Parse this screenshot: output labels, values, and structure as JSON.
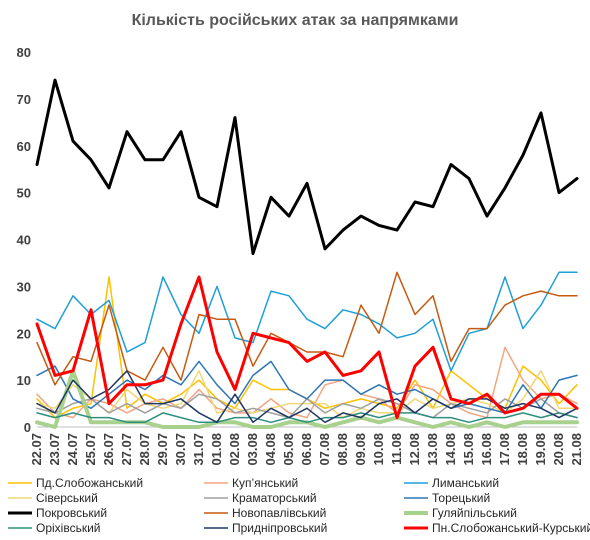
{
  "chart_data": {
    "type": "line",
    "title": "Кількість російських атак за напрямками",
    "xlabel": "",
    "ylabel": "",
    "ylim": [
      0,
      80
    ],
    "yticks": [
      0,
      10,
      20,
      30,
      40,
      50,
      60,
      70,
      80
    ],
    "grid": false,
    "legend_position": "bottom",
    "categories": [
      "22.07",
      "23.07",
      "24.07",
      "25.07",
      "26.07",
      "27.07",
      "28.07",
      "29.07",
      "30.07",
      "31.07",
      "01.08",
      "02.08",
      "03.08",
      "04.08",
      "05.08",
      "06.08",
      "07.08",
      "08.08",
      "09.08",
      "10.08",
      "11.08",
      "12.08",
      "13.08",
      "14.08",
      "15.08",
      "16.08",
      "17.08",
      "18.08",
      "19.08",
      "20.08",
      "21.08"
    ],
    "x": [
      "22.07",
      "23.07",
      "24.07",
      "25.07",
      "26.07",
      "27.07",
      "28.07",
      "29.07",
      "30.07",
      "31.07",
      "01.08",
      "02.08",
      "03.08",
      "04.08",
      "05.08",
      "06.08",
      "07.08",
      "08.08",
      "09.08",
      "10.08",
      "11.08",
      "12.08",
      "13.08",
      "14.08",
      "15.08",
      "16.08",
      "17.08",
      "18.08",
      "19.08",
      "20.08",
      "21.08"
    ],
    "series": [
      {
        "name": "Пд.Слобожанський",
        "color": "#ffc000",
        "width": 1.5,
        "values": [
          6,
          2,
          4,
          5,
          32,
          4,
          7,
          5,
          7,
          10,
          6,
          4,
          10,
          8,
          8,
          6,
          4,
          5,
          6,
          5,
          4,
          10,
          4,
          12,
          9,
          6,
          4,
          13,
          10,
          5,
          9
        ]
      },
      {
        "name": "Куп’янський",
        "color": "#f4a582",
        "width": 1.5,
        "values": [
          7,
          3,
          2,
          6,
          5,
          3,
          5,
          6,
          4,
          8,
          4,
          3,
          3,
          6,
          3,
          2,
          9,
          10,
          7,
          6,
          3,
          9,
          8,
          5,
          3,
          2,
          17,
          10,
          6,
          7,
          5
        ]
      },
      {
        "name": "Лиманський",
        "color": "#1f9fd8",
        "width": 1.5,
        "values": [
          23,
          21,
          28,
          24,
          27,
          16,
          18,
          32,
          24,
          20,
          30,
          19,
          18,
          29,
          28,
          23,
          21,
          25,
          24,
          22,
          19,
          20,
          23,
          12,
          20,
          21,
          32,
          21,
          26,
          33,
          33
        ]
      },
      {
        "name": "Сіверський",
        "color": "#f0d878",
        "width": 1.5,
        "values": [
          5,
          4,
          9,
          6,
          3,
          8,
          5,
          4,
          5,
          12,
          3,
          4,
          3,
          4,
          5,
          5,
          5,
          2,
          4,
          3,
          3,
          6,
          4,
          5,
          6,
          5,
          3,
          6,
          12,
          4,
          4
        ]
      },
      {
        "name": "Краматорський",
        "color": "#a0a0a0",
        "width": 1.5,
        "values": [
          4,
          3,
          5,
          6,
          3,
          5,
          3,
          5,
          4,
          7,
          6,
          3,
          4,
          3,
          2,
          6,
          3,
          5,
          4,
          6,
          5,
          3,
          2,
          5,
          4,
          3,
          6,
          4,
          6,
          3,
          2
        ]
      },
      {
        "name": "Торецький",
        "color": "#2e75b6",
        "width": 1.5,
        "values": [
          11,
          13,
          6,
          4,
          7,
          10,
          8,
          11,
          9,
          14,
          9,
          5,
          11,
          14,
          8,
          6,
          10,
          10,
          7,
          9,
          7,
          8,
          6,
          4,
          5,
          4,
          3,
          9,
          4,
          10,
          11
        ]
      },
      {
        "name": "Покровський",
        "color": "#000000",
        "width": 3,
        "values": [
          56,
          74,
          61,
          57,
          51,
          63,
          57,
          57,
          63,
          49,
          47,
          66,
          37,
          49,
          45,
          52,
          38,
          42,
          45,
          43,
          42,
          48,
          47,
          56,
          53,
          45,
          51,
          58,
          67,
          50,
          53
        ]
      },
      {
        "name": "Новопавлівський",
        "color": "#c55a11",
        "width": 1.5,
        "values": [
          18,
          9,
          15,
          14,
          26,
          12,
          10,
          17,
          10,
          24,
          23,
          23,
          13,
          20,
          18,
          16,
          16,
          15,
          26,
          20,
          33,
          24,
          28,
          14,
          21,
          21,
          26,
          28,
          29,
          28,
          28
        ]
      },
      {
        "name": "Гуляйпільський",
        "color": "#a9d18e",
        "width": 4,
        "values": [
          1,
          0,
          12,
          1,
          1,
          1,
          1,
          0,
          0,
          0,
          1,
          1,
          0,
          0,
          1,
          1,
          0,
          1,
          2,
          1,
          2,
          1,
          0,
          1,
          0,
          1,
          0,
          1,
          1,
          1,
          1
        ]
      },
      {
        "name": "Оріхівський",
        "color": "#2f8f7f",
        "width": 1.5,
        "values": [
          3,
          2,
          3,
          2,
          2,
          1,
          1,
          3,
          2,
          1,
          1,
          2,
          2,
          1,
          2,
          1,
          2,
          2,
          3,
          2,
          3,
          3,
          2,
          2,
          1,
          2,
          2,
          3,
          2,
          3,
          2
        ]
      },
      {
        "name": "Придніпровський",
        "color": "#1f3864",
        "width": 1.5,
        "values": [
          5,
          3,
          10,
          6,
          8,
          12,
          5,
          5,
          6,
          3,
          1,
          7,
          1,
          4,
          2,
          4,
          1,
          3,
          2,
          5,
          6,
          3,
          6,
          4,
          6,
          6,
          4,
          5,
          4,
          2,
          4
        ]
      },
      {
        "name": "Пн.Слобожанський-Курський",
        "color": "#ff0000",
        "width": 3,
        "values": [
          22,
          11,
          12,
          25,
          5,
          9,
          9,
          10,
          22,
          32,
          16,
          8,
          20,
          19,
          18,
          14,
          16,
          11,
          12,
          16,
          2,
          13,
          17,
          6,
          5,
          7,
          3,
          4,
          7,
          7,
          4
        ]
      }
    ]
  }
}
